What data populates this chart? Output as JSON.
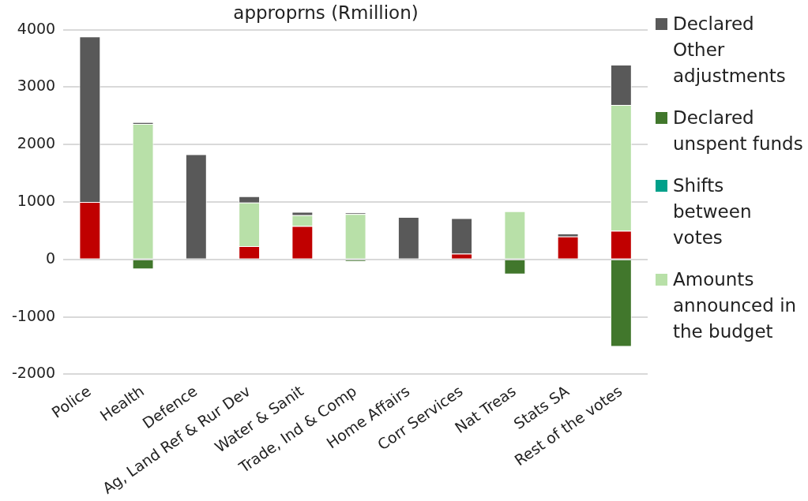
{
  "chart_data": {
    "type": "bar",
    "title": "approprns (Rmillion)",
    "stacked": true,
    "categories": [
      "Police",
      "Health",
      "Defence",
      "Ag, Land Ref & Rur Dev",
      "Water & Sanit",
      "Trade, Ind & Comp",
      "Home Affairs",
      "Corr Services",
      "Nat Treas",
      "Stats SA",
      "Rest of the votes"
    ],
    "series": [
      {
        "color": "#c00000",
        "values": [
          1000,
          0,
          0,
          230,
          580,
          0,
          0,
          100,
          0,
          400,
          500
        ]
      },
      {
        "name": "Amounts announced in the budget",
        "color": "#b8e0a8",
        "values": [
          0,
          2360,
          0,
          760,
          190,
          790,
          0,
          0,
          840,
          0,
          2190
        ]
      },
      {
        "name": "Shifts between votes",
        "color": "#00a08a",
        "values": [
          0,
          0,
          0,
          0,
          0,
          0,
          0,
          0,
          0,
          0,
          0
        ]
      },
      {
        "name": "Declared unspent funds",
        "color": "#41772c",
        "values": [
          0,
          -170,
          0,
          0,
          0,
          -40,
          0,
          0,
          -260,
          0,
          -1520
        ]
      },
      {
        "name": "Declared Other adjustments",
        "color": "#595959",
        "values": [
          2880,
          30,
          1830,
          110,
          60,
          30,
          740,
          620,
          0,
          50,
          700
        ]
      }
    ],
    "ylim": [
      -2000,
      4000
    ],
    "yticks": [
      -2000,
      -1000,
      0,
      1000,
      2000,
      3000,
      4000
    ],
    "grid": "y",
    "legend": "right"
  }
}
